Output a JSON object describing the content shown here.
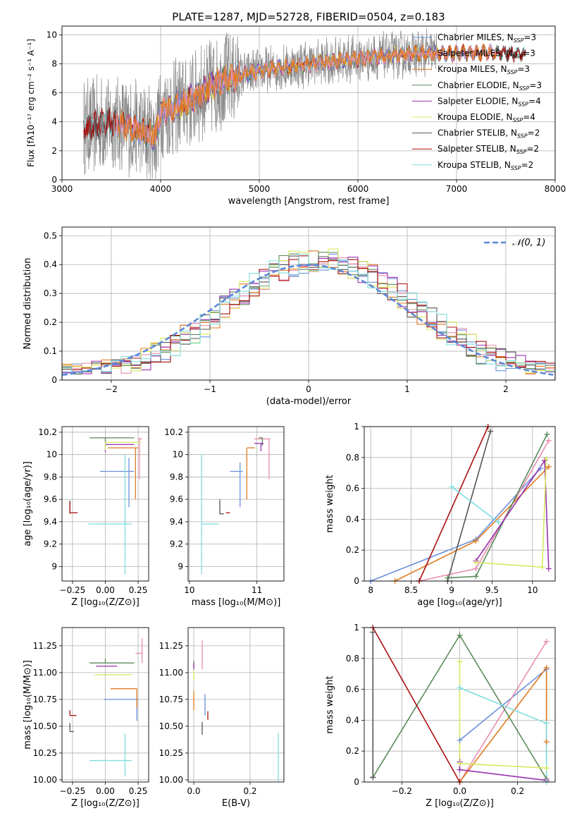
{
  "figure": {
    "title": "PLATE=1287, MJD=52728, FIBERID=0504, z=0.183"
  },
  "colors": {
    "Chabrier MILES": "#6a8fdb",
    "Salpeter MILES": "#e88fb0",
    "Kroupa MILES": "#e07b20",
    "Chabrier ELODIE": "#5a8a5a",
    "Salpeter ELODIE": "#9b30b0",
    "Kroupa ELODIE": "#d8e860",
    "Chabrier STELIB": "#555555",
    "Salpeter STELIB": "#aa1010",
    "Kroupa STELIB": "#80dede",
    "data": "#888888",
    "normal": "#5b87d6"
  },
  "chart_data": [
    {
      "id": "spectrum",
      "type": "line",
      "title": "PLATE=1287, MJD=52728, FIBERID=0504, z=0.183",
      "xlabel": "wavelength [Angstrom, rest frame]",
      "ylabel": "Flux [fλ10⁻¹⁷ erg cm⁻² s⁻¹ A⁻¹]",
      "xlim": [
        3000,
        8000
      ],
      "ylim": [
        0,
        10.6
      ],
      "xticks": [
        3000,
        4000,
        5000,
        6000,
        7000,
        8000
      ],
      "yticks": [
        0,
        2,
        4,
        6,
        8,
        10
      ],
      "legend_position": "right",
      "legend": [
        {
          "model": "Chabrier MILES",
          "label": "Chabrier MILES, N",
          "n": "=3"
        },
        {
          "model": "Salpeter MILES",
          "label": "Salpeter MILES, N",
          "n": "=3"
        },
        {
          "model": "Kroupa MILES",
          "label": "Kroupa MILES, N",
          "n": "=3"
        },
        {
          "model": "Chabrier ELODIE",
          "label": "Chabrier ELODIE, N",
          "n": "=3"
        },
        {
          "model": "Salpeter ELODIE",
          "label": "Salpeter ELODIE, N",
          "n": "=4"
        },
        {
          "model": "Kroupa ELODIE",
          "label": "Kroupa ELODIE, N",
          "n": "=4"
        },
        {
          "model": "Chabrier STELIB",
          "label": "Chabrier STELIB, N",
          "n": "=2"
        },
        {
          "model": "Salpeter STELIB",
          "label": "Salpeter STELIB, N",
          "n": "=2"
        },
        {
          "model": "Kroupa STELIB",
          "label": "Kroupa STELIB, N",
          "n": "=2"
        }
      ],
      "legend_sub": "SSP",
      "continuum": [
        [
          3200,
          3.5
        ],
        [
          3500,
          4.0
        ],
        [
          3700,
          3.6
        ],
        [
          3950,
          3.0
        ],
        [
          4000,
          4.6
        ],
        [
          4300,
          5.5
        ],
        [
          4600,
          6.8
        ],
        [
          5000,
          7.5
        ],
        [
          5400,
          7.9
        ],
        [
          5800,
          8.2
        ],
        [
          6200,
          8.5
        ],
        [
          6600,
          8.7
        ],
        [
          7000,
          8.7
        ],
        [
          7400,
          8.8
        ],
        [
          7800,
          8.6
        ]
      ],
      "ranges": {
        "data": [
          3220,
          6800
        ],
        "MILES": [
          3550,
          7400
        ],
        "ELODIE": [
          3900,
          6800
        ],
        "STELIB": [
          3220,
          7700
        ]
      }
    },
    {
      "id": "residuals",
      "type": "bar",
      "xlabel": "(data-model)/error",
      "ylabel": "Normed distribution",
      "xlim": [
        -2.5,
        2.5
      ],
      "ylim": [
        0,
        0.53
      ],
      "xticks": [
        -2,
        -1,
        0,
        1,
        2
      ],
      "yticks": [
        0.0,
        0.1,
        0.2,
        0.3,
        0.4,
        0.5
      ],
      "legend": {
        "label": "𝒩(0, 1)",
        "position": "upper right"
      },
      "bins": [
        -2.5,
        2.5,
        50
      ]
    },
    {
      "id": "age-vs-Z",
      "type": "scatter",
      "xlabel": "Z [log₁₀(Z/Z⊙)]",
      "ylabel": "age  [log₁₀(age/yr)]",
      "xlim": [
        -0.33,
        0.33
      ],
      "ylim": [
        8.87,
        10.25
      ],
      "xticks": [
        -0.25,
        0.0,
        0.25
      ],
      "xticklabels": [
        "−0.25",
        "0.00",
        "0.25"
      ],
      "yticks": [
        9.0,
        9.2,
        9.4,
        9.6,
        9.8,
        10.0,
        10.2
      ],
      "points": [
        {
          "model": "Chabrier MILES",
          "x": 0.18,
          "y": 9.85,
          "xerr": [
            0.22,
            0.04
          ],
          "yerr": [
            0.32,
            0.12
          ]
        },
        {
          "model": "Salpeter MILES",
          "x": 0.26,
          "y": 10.14,
          "xerr": [
            0.01,
            0.02
          ],
          "yerr": [
            0.36,
            0.01
          ]
        },
        {
          "model": "Kroupa MILES",
          "x": 0.23,
          "y": 10.06,
          "xerr": [
            0.21,
            0.02
          ],
          "yerr": [
            0.46,
            0.0
          ]
        },
        {
          "model": "Chabrier ELODIE",
          "x": 0.0,
          "y": 10.15,
          "xerr": [
            0.12,
            0.22
          ],
          "yerr": [
            0.07,
            0.0
          ]
        },
        {
          "model": "Salpeter ELODIE",
          "x": 0.0,
          "y": 10.09,
          "xerr": [
            0.0,
            0.22
          ],
          "yerr": [
            0.07,
            0.0
          ]
        },
        {
          "model": "Kroupa ELODIE",
          "x": 0.0,
          "y": 10.11,
          "xerr": [
            0.0,
            0.27
          ],
          "yerr": [
            0.07,
            0.0
          ]
        },
        {
          "model": "Chabrier STELIB",
          "x": -0.27,
          "y": 9.47,
          "xerr": [
            0.0,
            0.0
          ],
          "yerr": [
            0.0,
            0.12
          ]
        },
        {
          "model": "Salpeter STELIB",
          "x": -0.27,
          "y": 9.48,
          "xerr": [
            0.0,
            0.06
          ],
          "yerr": [
            0.0,
            0.1
          ]
        },
        {
          "model": "Kroupa STELIB",
          "x": 0.15,
          "y": 9.38,
          "xerr": [
            0.28,
            0.05
          ],
          "yerr": [
            0.45,
            0.62
          ]
        }
      ]
    },
    {
      "id": "age-vs-mass",
      "type": "scatter",
      "xlabel": "mass [log₁₀(M/M⊙)]",
      "xlim": [
        9.98,
        11.4
      ],
      "ylim": [
        8.87,
        10.25
      ],
      "xticks": [
        10,
        11
      ],
      "yticks": [
        9.0,
        9.2,
        9.4,
        9.6,
        9.8,
        10.0,
        10.2
      ],
      "points": [
        {
          "model": "Chabrier MILES",
          "x": 10.75,
          "y": 9.85,
          "xerr": [
            0.15,
            0.04
          ],
          "yerr": [
            0.32,
            0.08
          ]
        },
        {
          "model": "Salpeter MILES",
          "x": 11.18,
          "y": 10.14,
          "xerr": [
            0.22,
            0.02
          ],
          "yerr": [
            0.36,
            0.0
          ]
        },
        {
          "model": "Kroupa MILES",
          "x": 10.85,
          "y": 10.06,
          "xerr": [
            0.0,
            0.12
          ],
          "yerr": [
            0.46,
            0.0
          ]
        },
        {
          "model": "Chabrier ELODIE",
          "x": 11.08,
          "y": 10.15,
          "xerr": [
            0.05,
            0.0
          ],
          "yerr": [
            0.07,
            0.0
          ]
        },
        {
          "model": "Salpeter ELODIE",
          "x": 11.06,
          "y": 10.1,
          "xerr": [
            0.1,
            0.04
          ],
          "yerr": [
            0.07,
            0.0
          ]
        },
        {
          "model": "Kroupa ELODIE",
          "x": 10.98,
          "y": 10.11,
          "xerr": [
            0.0,
            0.0
          ],
          "yerr": [
            0.0,
            0.0
          ]
        },
        {
          "model": "Chabrier STELIB",
          "x": 10.45,
          "y": 9.47,
          "xerr": [
            0.0,
            0.06
          ],
          "yerr": [
            0.0,
            0.13
          ]
        },
        {
          "model": "Salpeter STELIB",
          "x": 10.6,
          "y": 9.48,
          "xerr": [
            0.06,
            0.0
          ],
          "yerr": [
            0.0,
            0.0
          ]
        },
        {
          "model": "Kroupa STELIB",
          "x": 10.18,
          "y": 9.38,
          "xerr": [
            0.0,
            0.25
          ],
          "yerr": [
            0.45,
            0.62
          ]
        }
      ]
    },
    {
      "id": "weight-vs-age",
      "type": "line",
      "xlabel": "age  [log₁₀(age/yr)]",
      "ylabel": "mass weight",
      "xlim": [
        7.92,
        10.28
      ],
      "ylim": [
        0,
        1.0
      ],
      "xticks": [
        8.0,
        8.5,
        9.0,
        9.5,
        10.0
      ],
      "yticks": [
        0.0,
        0.2,
        0.4,
        0.6,
        0.8,
        1.0
      ],
      "series": [
        {
          "model": "Chabrier MILES",
          "points": [
            [
              8.0,
              0.0
            ],
            [
              9.3,
              0.27
            ],
            [
              10.1,
              0.73
            ]
          ]
        },
        {
          "model": "Salpeter MILES",
          "points": [
            [
              8.6,
              0.0
            ],
            [
              9.3,
              0.08
            ],
            [
              10.2,
              0.91
            ]
          ]
        },
        {
          "model": "Kroupa MILES",
          "points": [
            [
              8.3,
              0.0
            ],
            [
              9.3,
              0.26
            ],
            [
              10.2,
              0.74
            ]
          ]
        },
        {
          "model": "Chabrier ELODIE",
          "points": [
            [
              8.95,
              0.02
            ],
            [
              9.3,
              0.03
            ],
            [
              10.18,
              0.95
            ]
          ]
        },
        {
          "model": "Salpeter ELODIE",
          "points": [
            [
              9.3,
              0.13
            ],
            [
              10.15,
              0.78
            ],
            [
              10.2,
              0.08
            ]
          ]
        },
        {
          "model": "Kroupa ELODIE",
          "points": [
            [
              9.3,
              0.12
            ],
            [
              10.12,
              0.09
            ],
            [
              10.17,
              0.79
            ]
          ]
        },
        {
          "model": "Chabrier STELIB",
          "points": [
            [
              8.95,
              0.0
            ],
            [
              9.48,
              0.97
            ]
          ]
        },
        {
          "model": "Salpeter STELIB",
          "points": [
            [
              8.6,
              0.0
            ],
            [
              9.45,
              1.0
            ]
          ]
        },
        {
          "model": "Kroupa STELIB",
          "points": [
            [
              9.0,
              0.61
            ],
            [
              9.58,
              0.38
            ]
          ]
        }
      ]
    },
    {
      "id": "mass-vs-Z",
      "type": "scatter",
      "xlabel": "Z [log₁₀(Z/Z⊙)]",
      "ylabel": "mass [log₁₀(M/M⊙)]",
      "xlim": [
        -0.33,
        0.33
      ],
      "ylim": [
        9.98,
        11.42
      ],
      "xticks": [
        -0.25,
        0.0,
        0.25
      ],
      "xticklabels": [
        "−0.25",
        "0.00",
        "0.25"
      ],
      "yticks": [
        10.0,
        10.25,
        10.5,
        10.75,
        11.0,
        11.25
      ],
      "yticklabels": [
        "10.00",
        "10.25",
        "10.50",
        "10.75",
        "11.00",
        "11.25"
      ],
      "points": [
        {
          "model": "Chabrier MILES",
          "x": 0.24,
          "y": 10.75,
          "xerr": [
            0.25,
            0.01
          ],
          "yerr": [
            0.2,
            0.0
          ]
        },
        {
          "model": "Salpeter MILES",
          "x": 0.28,
          "y": 11.18,
          "xerr": [
            0.05,
            0.0
          ],
          "yerr": [
            0.09,
            0.14
          ]
        },
        {
          "model": "Kroupa MILES",
          "x": 0.24,
          "y": 10.85,
          "xerr": [
            0.2,
            0.0
          ],
          "yerr": [
            0.18,
            0.0
          ]
        },
        {
          "model": "Chabrier ELODIE",
          "x": 0.0,
          "y": 11.09,
          "xerr": [
            0.12,
            0.22
          ],
          "yerr": [
            0.0,
            0.04
          ]
        },
        {
          "model": "Salpeter ELODIE",
          "x": 0.0,
          "y": 11.06,
          "xerr": [
            0.07,
            0.09
          ],
          "yerr": [
            0.0,
            0.0
          ]
        },
        {
          "model": "Kroupa ELODIE",
          "x": 0.0,
          "y": 10.98,
          "xerr": [
            0.08,
            0.2
          ],
          "yerr": [
            0.0,
            0.0
          ]
        },
        {
          "model": "Chabrier STELIB",
          "x": -0.27,
          "y": 10.45,
          "xerr": [
            0.0,
            0.03
          ],
          "yerr": [
            0.0,
            0.08
          ]
        },
        {
          "model": "Salpeter STELIB",
          "x": -0.27,
          "y": 10.6,
          "xerr": [
            0.0,
            0.05
          ],
          "yerr": [
            0.0,
            0.05
          ]
        },
        {
          "model": "Kroupa STELIB",
          "x": 0.15,
          "y": 10.18,
          "xerr": [
            0.27,
            0.05
          ],
          "yerr": [
            0.15,
            0.25
          ]
        }
      ]
    },
    {
      "id": "mass-vs-ebv",
      "type": "scatter",
      "xlabel": "E(B-V)",
      "xlim": [
        -0.02,
        0.32
      ],
      "ylim": [
        9.98,
        11.42
      ],
      "xticks": [
        0.0,
        0.2
      ],
      "xticklabels": [
        "0.0",
        "0.2"
      ],
      "yticks": [
        10.0,
        10.25,
        10.5,
        10.75,
        11.0,
        11.25
      ],
      "yticklabels": [
        "10.00",
        "10.25",
        "10.50",
        "10.75",
        "11.00",
        "11.25"
      ],
      "points": [
        {
          "model": "Chabrier MILES",
          "x": 0.04,
          "y": 10.7,
          "yerr": [
            0.1,
            0.1
          ]
        },
        {
          "model": "Salpeter MILES",
          "x": 0.03,
          "y": 11.15,
          "yerr": [
            0.12,
            0.15
          ]
        },
        {
          "model": "Kroupa MILES",
          "x": 0.0,
          "y": 10.75,
          "yerr": [
            0.1,
            0.08
          ]
        },
        {
          "model": "Chabrier ELODIE",
          "x": 0.0,
          "y": 11.08,
          "yerr": [
            0.03,
            0.03
          ]
        },
        {
          "model": "Salpeter ELODIE",
          "x": 0.0,
          "y": 11.06,
          "yerr": [
            0.04,
            0.03
          ]
        },
        {
          "model": "Kroupa ELODIE",
          "x": 0.0,
          "y": 10.98,
          "yerr": [
            0.05,
            0.05
          ]
        },
        {
          "model": "Chabrier STELIB",
          "x": 0.03,
          "y": 10.48,
          "yerr": [
            0.06,
            0.06
          ]
        },
        {
          "model": "Salpeter STELIB",
          "x": 0.05,
          "y": 10.6,
          "yerr": [
            0.04,
            0.04
          ]
        },
        {
          "model": "Kroupa STELIB",
          "x": 0.3,
          "y": 10.2,
          "yerr": [
            0.22,
            0.24
          ]
        }
      ]
    },
    {
      "id": "weight-vs-Z",
      "type": "line",
      "xlabel": "Z [log₁₀(Z/Z⊙)]",
      "ylabel": "mass weight",
      "xlim": [
        -0.33,
        0.33
      ],
      "ylim": [
        0,
        1.0
      ],
      "xticks": [
        -0.2,
        0.0,
        0.2
      ],
      "xticklabels": [
        "−0.2",
        "0.0",
        "0.2"
      ],
      "yticks": [
        0.0,
        0.2,
        0.4,
        0.6,
        0.8,
        1.0
      ],
      "series": [
        {
          "model": "Chabrier MILES",
          "points": [
            [
              0.0,
              0.27
            ],
            [
              0.3,
              0.73
            ],
            [
              0.3,
              0.0
            ]
          ]
        },
        {
          "model": "Salpeter MILES",
          "points": [
            [
              0.0,
              0.0
            ],
            [
              0.3,
              0.91
            ]
          ]
        },
        {
          "model": "Kroupa MILES",
          "points": [
            [
              0.0,
              0.0
            ],
            [
              0.3,
              0.74
            ],
            [
              0.3,
              0.26
            ]
          ]
        },
        {
          "model": "Chabrier ELODIE",
          "points": [
            [
              -0.3,
              0.03
            ],
            [
              0.0,
              0.95
            ],
            [
              0.3,
              0.02
            ]
          ]
        },
        {
          "model": "Salpeter ELODIE",
          "points": [
            [
              0.0,
              0.13
            ],
            [
              0.0,
              0.08
            ],
            [
              0.3,
              0.01
            ]
          ]
        },
        {
          "model": "Kroupa ELODIE",
          "points": [
            [
              0.0,
              0.78
            ],
            [
              0.0,
              0.12
            ],
            [
              0.3,
              0.09
            ],
            [
              0.3,
              0.0
            ]
          ]
        },
        {
          "model": "Chabrier STELIB",
          "points": [
            [
              -0.3,
              0.97
            ],
            [
              -0.3,
              0.03
            ]
          ]
        },
        {
          "model": "Salpeter STELIB",
          "points": [
            [
              -0.3,
              1.0
            ],
            [
              0.0,
              0.0
            ]
          ]
        },
        {
          "model": "Kroupa STELIB",
          "points": [
            [
              0.0,
              0.61
            ],
            [
              0.3,
              0.38
            ],
            [
              0.3,
              0.0
            ]
          ]
        }
      ]
    }
  ]
}
